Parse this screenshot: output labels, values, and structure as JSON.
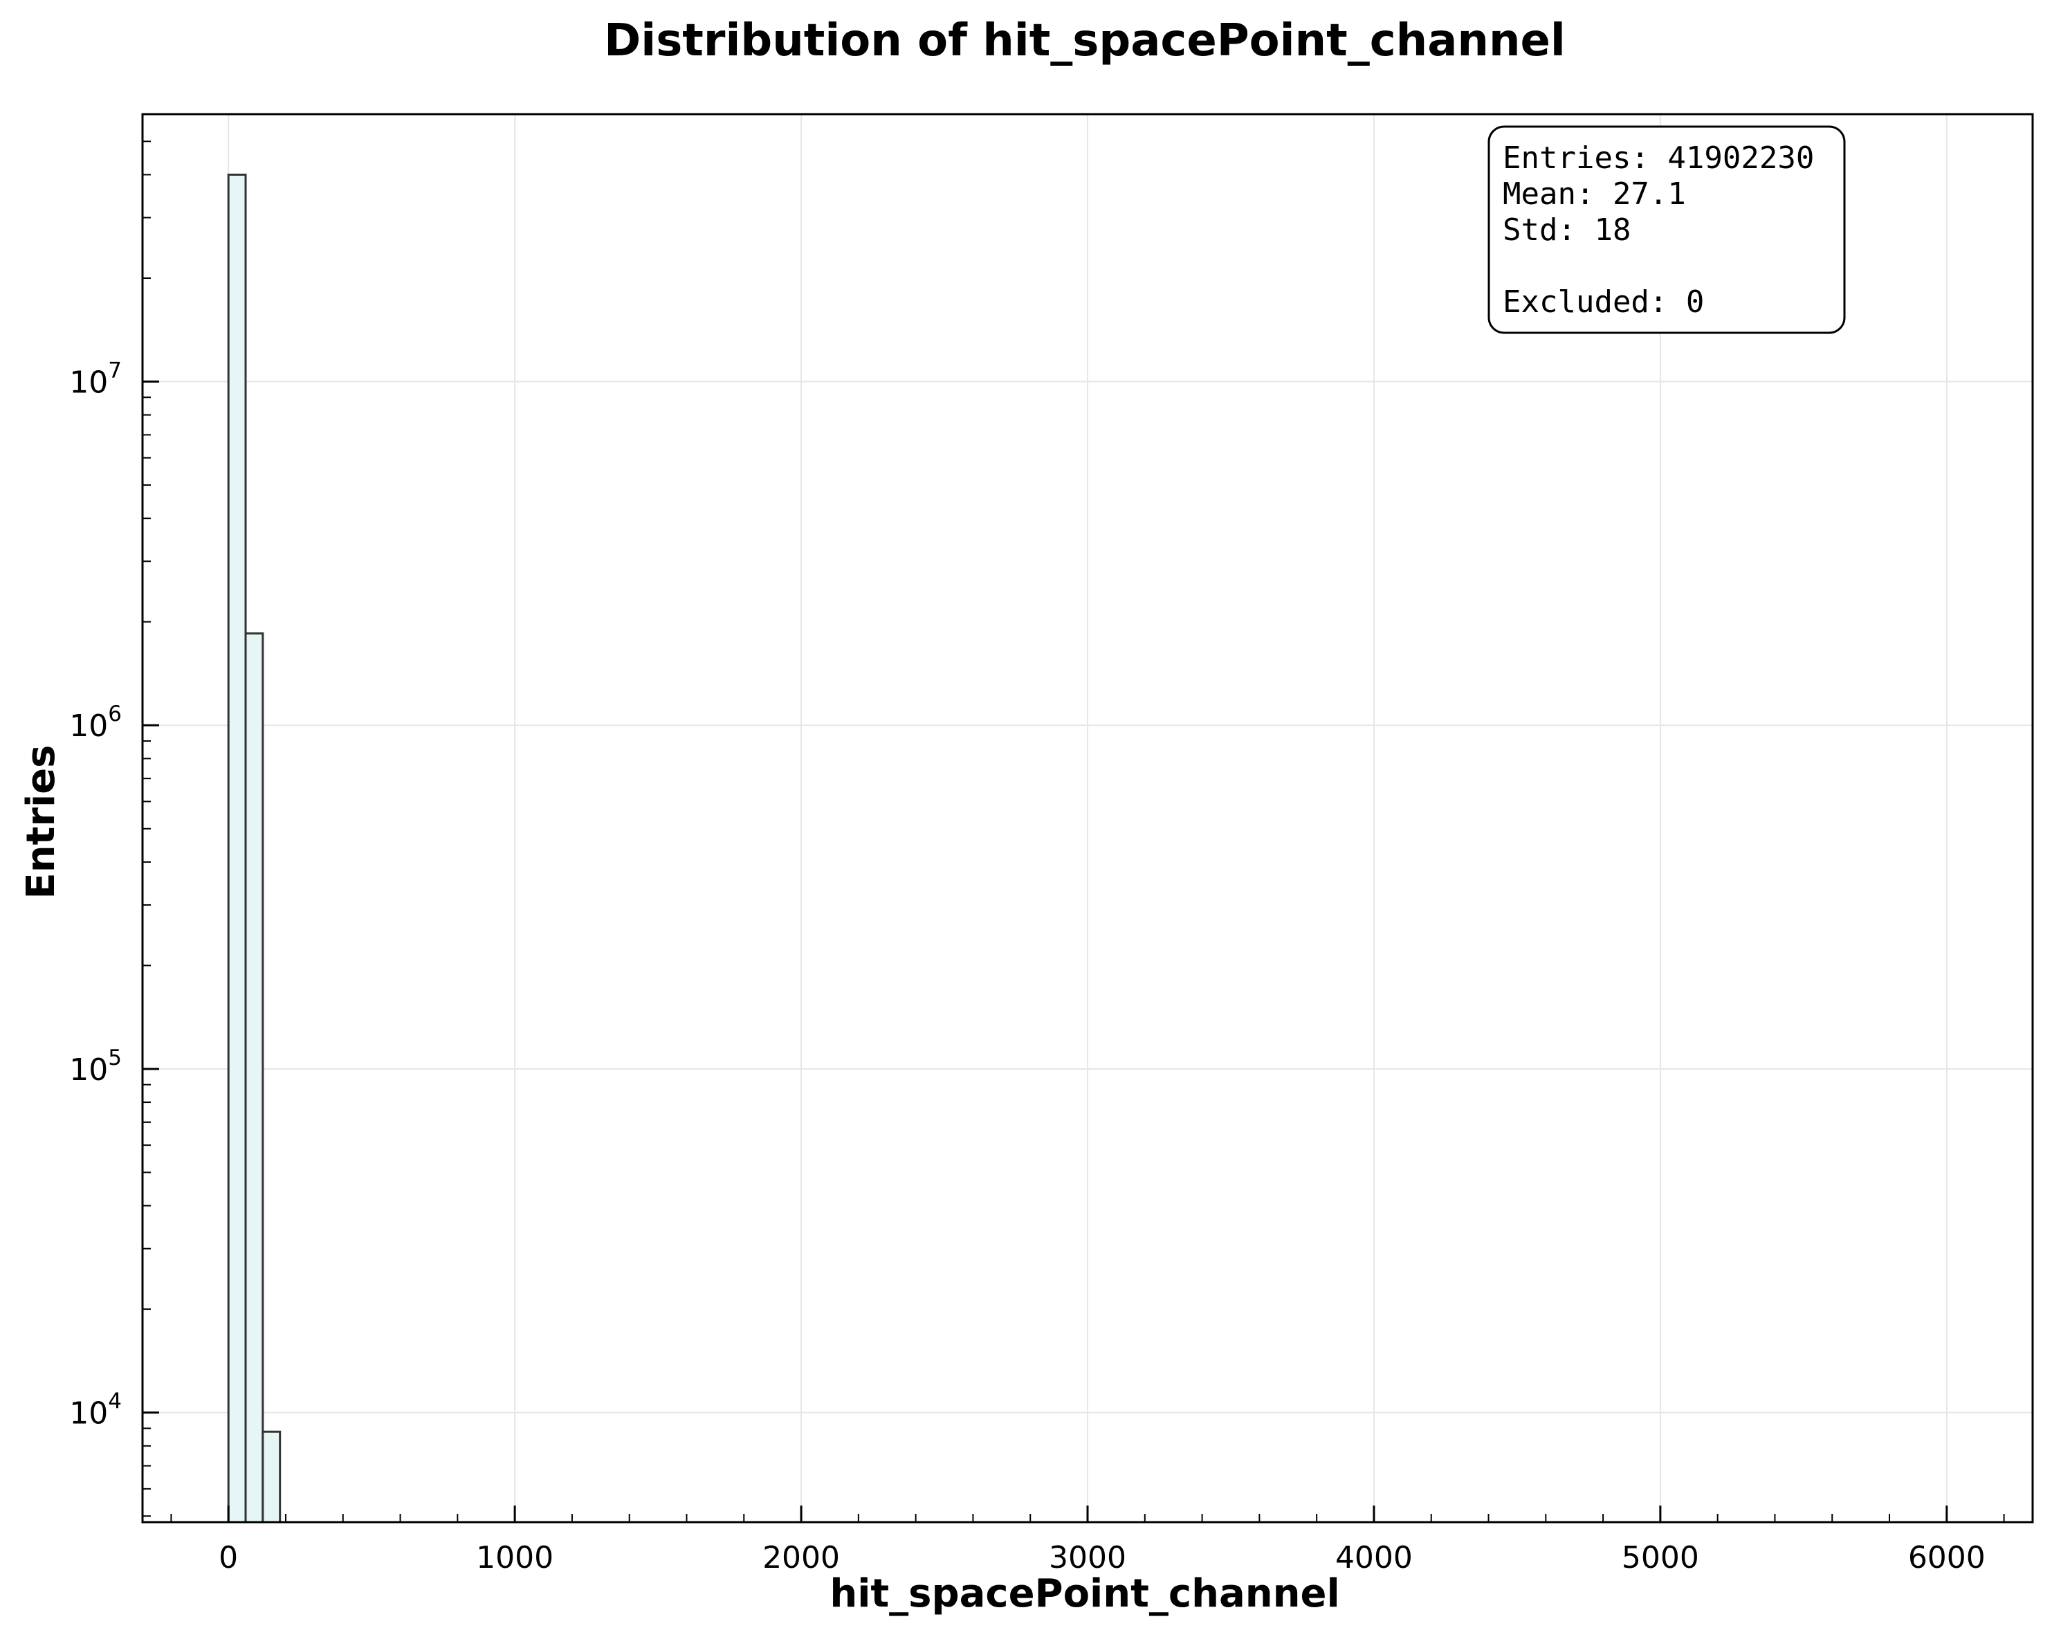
{
  "chart_data": {
    "type": "bar",
    "title": "Distribution of hit_spacePoint_channel",
    "xlabel": "hit_spacePoint_channel",
    "ylabel": "Entries",
    "xlim": [
      -300,
      6300
    ],
    "ylim": [
      4800,
      60000000
    ],
    "yscale": "log",
    "grid": true,
    "xticks": [
      0,
      1000,
      2000,
      3000,
      4000,
      5000,
      6000
    ],
    "xtick_labels": [
      "0",
      "1000",
      "2000",
      "3000",
      "4000",
      "5000",
      "6000"
    ],
    "yticks": [
      {
        "value": 10000,
        "base": "10",
        "exp": "4"
      },
      {
        "value": 100000,
        "base": "10",
        "exp": "5"
      },
      {
        "value": 1000000,
        "base": "10",
        "exp": "6"
      },
      {
        "value": 10000000,
        "base": "10",
        "exp": "7"
      }
    ],
    "bins": [
      {
        "x0": 0,
        "x1": 60,
        "count": 40000000
      },
      {
        "x0": 60,
        "x1": 120,
        "count": 1850000
      },
      {
        "x0": 120,
        "x1": 180,
        "count": 8800
      }
    ],
    "colors": {
      "bar_fill": "#e6f5f5",
      "bar_edge": "#333333",
      "grid": "#e6e6e6"
    },
    "stats_box": {
      "position": "top-right",
      "lines": [
        "Entries: 41902230",
        "Mean: 27.1",
        "Std: 18",
        "",
        "Excluded: 0"
      ]
    }
  }
}
